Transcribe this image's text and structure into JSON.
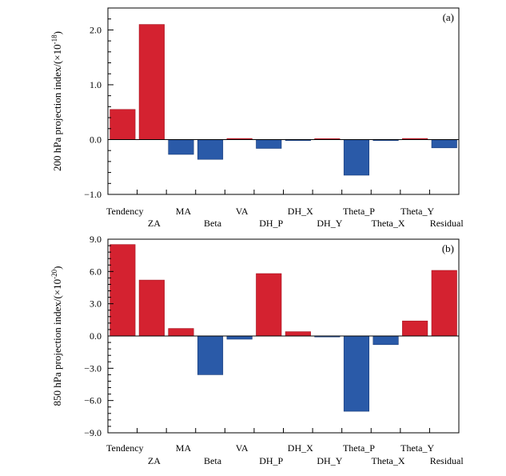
{
  "chart_data": [
    {
      "type": "bar",
      "panel_tag": "(a)",
      "ylabel": "200 hPa projection index/(×10",
      "ylabel_exp": "-18",
      "ylabel_close": ")",
      "ylim": [
        -1.0,
        2.4
      ],
      "yticks": [
        -1.0,
        0.0,
        1.0,
        2.0
      ],
      "ytick_labels": [
        "−1.0",
        "0.0",
        "1.0",
        "2.0"
      ],
      "categories": [
        "Tendency",
        "ZA",
        "MA",
        "Beta",
        "VA",
        "DH_P",
        "DH_X",
        "DH_Y",
        "Theta_P",
        "Theta_X",
        "Theta_Y",
        "Residual"
      ],
      "values": [
        0.55,
        2.1,
        -0.27,
        -0.36,
        0.02,
        -0.16,
        -0.01,
        0.0,
        -0.65,
        -0.01,
        0.02,
        -0.15
      ],
      "positive_color": "#d42230",
      "negative_color": "#2a5aa8"
    },
    {
      "type": "bar",
      "panel_tag": "(b)",
      "ylabel": "850 hPa projection index/(×10",
      "ylabel_exp": "-20",
      "ylabel_close": ")",
      "ylim": [
        -9.0,
        9.0
      ],
      "yticks": [
        -9.0,
        -6.0,
        -3.0,
        0.0,
        3.0,
        6.0,
        9.0
      ],
      "ytick_labels": [
        "−9.0",
        "−6.0",
        "−3.0",
        "0.0",
        "3.0",
        "6.0",
        "9.0"
      ],
      "categories": [
        "Tendency",
        "ZA",
        "MA",
        "Beta",
        "VA",
        "DH_P",
        "DH_X",
        "DH_Y",
        "Theta_P",
        "Theta_X",
        "Theta_Y",
        "Residual"
      ],
      "values": [
        8.5,
        5.2,
        0.7,
        -3.6,
        -0.3,
        5.8,
        0.4,
        -0.05,
        -7.0,
        -0.8,
        1.4,
        6.1
      ],
      "positive_color": "#d42230",
      "negative_color": "#2a5aa8"
    }
  ]
}
